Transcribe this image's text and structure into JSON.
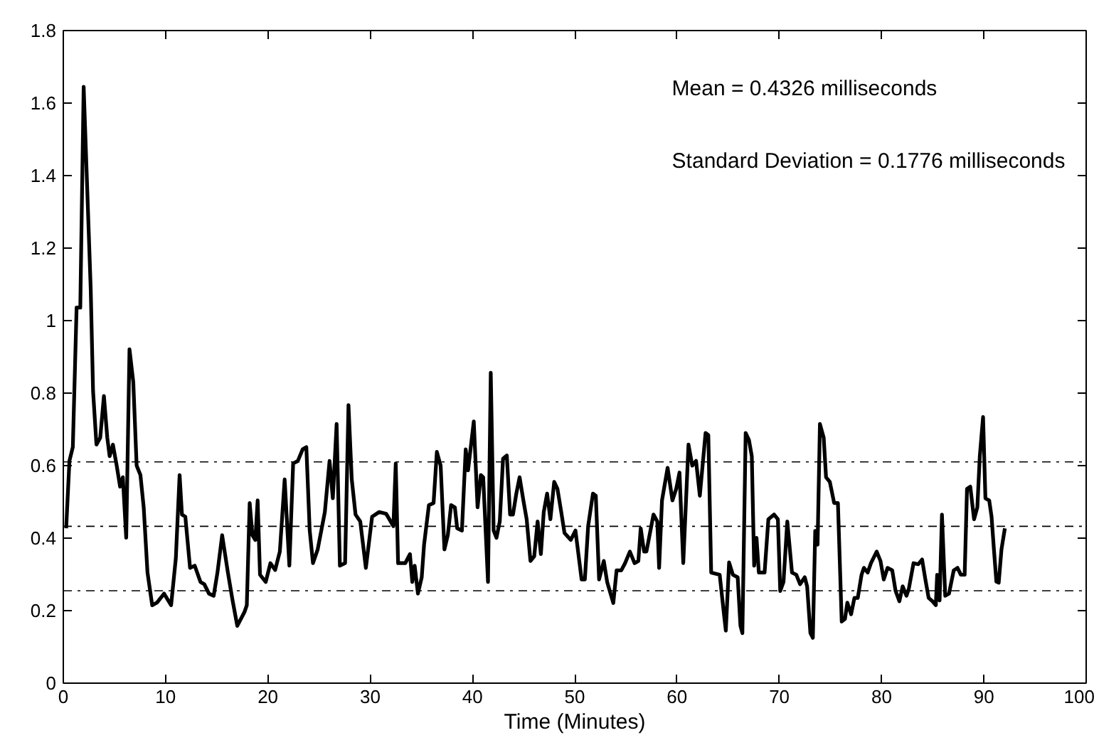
{
  "chart_data": {
    "type": "line",
    "xlabel": "Time (Minutes)",
    "xlim": [
      0,
      100
    ],
    "xticks": [
      0,
      10,
      20,
      30,
      40,
      50,
      60,
      70,
      80,
      90,
      100
    ],
    "ylim": [
      0,
      1.8
    ],
    "yticks": [
      0,
      {
        "value": 0.2,
        "label": "0.2"
      },
      {
        "value": 0.4,
        "label": "0.4"
      },
      {
        "value": 0.6,
        "label": "0.6"
      },
      {
        "value": 0.8,
        "label": "0.8"
      },
      1,
      {
        "value": 1.2,
        "label": "1.2"
      },
      {
        "value": 1.4,
        "label": "1.4"
      },
      {
        "value": 1.6,
        "label": "1.6"
      },
      {
        "value": 1.8,
        "label": "1.8"
      }
    ],
    "grid": false,
    "marker": "none",
    "line_style": "solid",
    "annotations": [
      "Mean = 0.4326 milliseconds",
      "Standard Deviation = 0.1776 milliseconds"
    ],
    "ref_lines": [
      {
        "axis": "y",
        "value": 0.6102,
        "color": "#000000",
        "line_style": "dashdot"
      },
      {
        "axis": "y",
        "value": 0.4326,
        "color": "#000000",
        "line_style": "dashdot"
      },
      {
        "axis": "y",
        "value": 0.255,
        "color": "#000000",
        "line_style": "dashdot"
      }
    ],
    "series": [
      {
        "color": "#000000",
        "x": [
          0.28,
          0.6,
          0.93,
          1.3,
          1.66,
          1.99,
          2.68,
          2.91,
          3.24,
          3.61,
          3.97,
          4.3,
          4.53,
          4.85,
          5.22,
          5.55,
          5.82,
          6.15,
          6.47,
          6.84,
          7.17,
          7.54,
          7.86,
          8.23,
          8.69,
          9.15,
          9.85,
          10.54,
          11.0,
          11.37,
          11.6,
          11.93,
          12.39,
          12.85,
          13.41,
          13.78,
          14.24,
          14.7,
          15.07,
          15.53,
          16.09,
          16.55,
          17.01,
          17.71,
          17.94,
          18.22,
          18.49,
          18.77,
          19.0,
          19.23,
          19.79,
          20.25,
          20.71,
          21.17,
          21.64,
          22.1,
          22.47,
          22.93,
          23.4,
          23.76,
          24.09,
          24.41,
          24.87,
          25.57,
          26.03,
          26.35,
          26.72,
          27.04,
          27.55,
          27.88,
          28.2,
          28.57,
          29.03,
          29.58,
          30.19,
          30.88,
          31.57,
          32.27,
          32.5,
          32.73,
          33.43,
          33.89,
          34.12,
          34.35,
          34.67,
          35.04,
          35.27,
          35.74,
          36.2,
          36.52,
          36.89,
          37.26,
          37.59,
          37.91,
          38.28,
          38.51,
          38.97,
          39.34,
          39.57,
          40.13,
          40.5,
          40.82,
          41.05,
          41.52,
          41.79,
          42.07,
          42.35,
          42.67,
          42.99,
          43.36,
          43.68,
          43.96,
          44.29,
          44.61,
          44.98,
          45.3,
          45.67,
          46.04,
          46.37,
          46.69,
          46.97,
          47.3,
          47.62,
          47.99,
          48.31,
          48.68,
          49.0,
          49.61,
          50.07,
          50.67,
          50.99,
          51.31,
          51.78,
          52.06,
          52.38,
          52.84,
          53.17,
          53.77,
          54.09,
          54.55,
          54.92,
          55.39,
          55.85,
          56.22,
          56.45,
          56.78,
          57.01,
          57.7,
          58.07,
          58.25,
          58.53,
          59.08,
          59.55,
          59.92,
          60.24,
          60.61,
          61.12,
          61.49,
          61.86,
          62.23,
          62.79,
          63.06,
          63.34,
          64.17,
          64.59,
          64.77,
          65.09,
          65.46,
          65.93,
          66.2,
          66.39,
          66.71,
          67.03,
          67.31,
          67.54,
          67.77,
          68.0,
          68.56,
          68.93,
          69.49,
          69.86,
          70.09,
          70.41,
          70.78,
          71.24,
          71.66,
          72.03,
          72.49,
          72.72,
          73.04,
          73.28,
          73.51,
          73.74,
          73.97,
          74.34,
          74.57,
          74.94,
          75.36,
          75.73,
          76.1,
          76.42,
          76.65,
          77.02,
          77.34,
          77.67,
          78.04,
          78.27,
          78.64,
          78.96,
          79.52,
          79.89,
          80.21,
          80.58,
          81.04,
          81.37,
          81.74,
          82.06,
          82.43,
          82.66,
          83.12,
          83.59,
          83.96,
          84.28,
          84.6,
          84.97,
          85.3,
          85.43,
          85.67,
          85.9,
          86.22,
          86.59,
          87.05,
          87.42,
          87.75,
          88.12,
          88.35,
          88.67,
          89.04,
          89.36,
          89.6,
          89.92,
          90.15,
          90.52,
          90.75,
          90.98,
          91.22,
          91.45,
          91.72,
          92.05
        ],
        "values": [
          0.427,
          0.613,
          0.651,
          1.036,
          1.036,
          1.645,
          1.087,
          0.805,
          0.658,
          0.677,
          0.792,
          0.677,
          0.626,
          0.658,
          0.6,
          0.542,
          0.568,
          0.401,
          0.921,
          0.831,
          0.6,
          0.574,
          0.485,
          0.305,
          0.215,
          0.222,
          0.247,
          0.215,
          0.344,
          0.574,
          0.465,
          0.459,
          0.318,
          0.324,
          0.279,
          0.273,
          0.247,
          0.241,
          0.305,
          0.408,
          0.305,
          0.228,
          0.158,
          0.196,
          0.215,
          0.497,
          0.408,
          0.395,
          0.504,
          0.299,
          0.279,
          0.331,
          0.312,
          0.363,
          0.562,
          0.324,
          0.606,
          0.613,
          0.645,
          0.651,
          0.421,
          0.331,
          0.369,
          0.472,
          0.613,
          0.51,
          0.715,
          0.324,
          0.331,
          0.767,
          0.562,
          0.465,
          0.446,
          0.318,
          0.459,
          0.472,
          0.467,
          0.433,
          0.606,
          0.331,
          0.331,
          0.356,
          0.279,
          0.324,
          0.247,
          0.292,
          0.382,
          0.491,
          0.497,
          0.638,
          0.6,
          0.369,
          0.408,
          0.491,
          0.485,
          0.427,
          0.421,
          0.645,
          0.587,
          0.722,
          0.485,
          0.574,
          0.568,
          0.279,
          0.856,
          0.421,
          0.401,
          0.446,
          0.619,
          0.628,
          0.465,
          0.465,
          0.523,
          0.568,
          0.504,
          0.452,
          0.337,
          0.35,
          0.446,
          0.356,
          0.472,
          0.523,
          0.452,
          0.555,
          0.536,
          0.472,
          0.414,
          0.395,
          0.421,
          0.286,
          0.286,
          0.433,
          0.523,
          0.517,
          0.286,
          0.337,
          0.279,
          0.221,
          0.311,
          0.311,
          0.331,
          0.363,
          0.331,
          0.337,
          0.427,
          0.363,
          0.363,
          0.465,
          0.446,
          0.318,
          0.504,
          0.594,
          0.504,
          0.536,
          0.581,
          0.331,
          0.658,
          0.6,
          0.613,
          0.517,
          0.69,
          0.684,
          0.305,
          0.299,
          0.19,
          0.145,
          0.333,
          0.299,
          0.292,
          0.158,
          0.138,
          0.69,
          0.671,
          0.626,
          0.324,
          0.401,
          0.305,
          0.305,
          0.452,
          0.465,
          0.452,
          0.254,
          0.279,
          0.446,
          0.305,
          0.299,
          0.273,
          0.292,
          0.267,
          0.138,
          0.125,
          0.42,
          0.382,
          0.715,
          0.677,
          0.568,
          0.555,
          0.497,
          0.497,
          0.17,
          0.177,
          0.222,
          0.19,
          0.235,
          0.235,
          0.299,
          0.318,
          0.305,
          0.331,
          0.363,
          0.337,
          0.286,
          0.318,
          0.311,
          0.254,
          0.226,
          0.267,
          0.241,
          0.26,
          0.331,
          0.328,
          0.341,
          0.286,
          0.235,
          0.226,
          0.215,
          0.299,
          0.228,
          0.465,
          0.241,
          0.247,
          0.311,
          0.318,
          0.299,
          0.299,
          0.536,
          0.542,
          0.452,
          0.485,
          0.626,
          0.734,
          0.51,
          0.504,
          0.459,
          0.369,
          0.28,
          0.277,
          0.369,
          0.427
        ]
      }
    ]
  }
}
